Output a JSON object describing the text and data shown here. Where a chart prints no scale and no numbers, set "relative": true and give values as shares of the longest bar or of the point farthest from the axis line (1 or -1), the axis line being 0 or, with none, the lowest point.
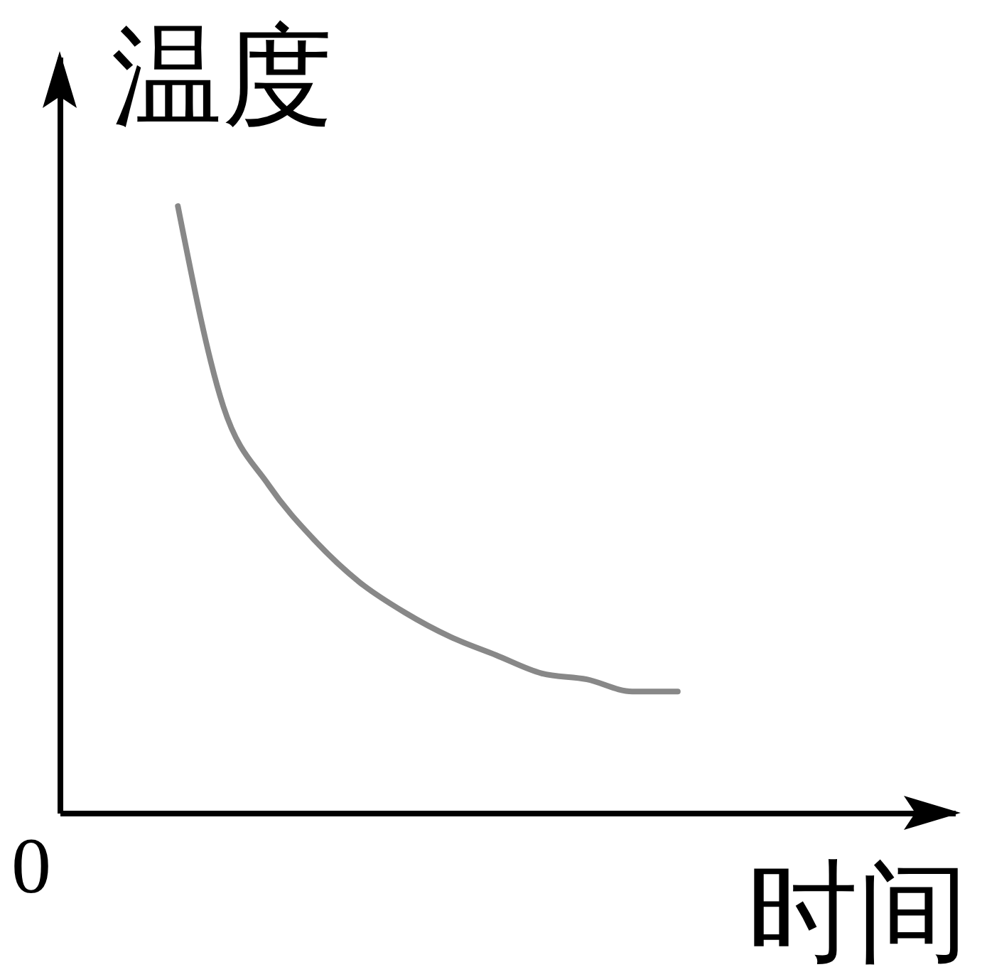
{
  "chart_data": {
    "type": "line",
    "relative": true,
    "xlabel": "时间",
    "ylabel": "温度",
    "annotations": [
      "0"
    ],
    "categories": [
      null,
      null,
      null,
      null,
      null,
      null,
      null,
      null,
      null,
      null,
      null,
      null
    ],
    "values": [
      1.0,
      0.67,
      0.54,
      0.45,
      0.38,
      0.33,
      0.29,
      0.26,
      0.23,
      0.22,
      0.2,
      0.2
    ],
    "color": "#888888"
  }
}
